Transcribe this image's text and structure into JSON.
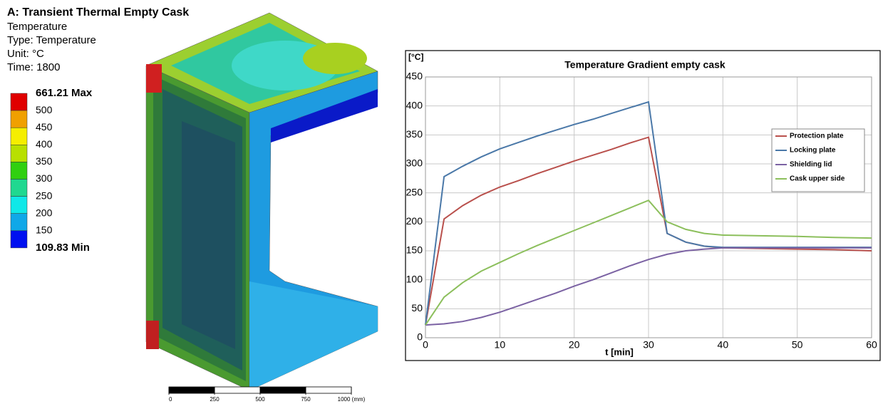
{
  "simulation": {
    "title": "A: Transient Thermal Empty Cask",
    "lines": [
      "Temperature",
      "Type: Temperature",
      "Unit: °C",
      "Time: 1800"
    ],
    "legend": {
      "levels": [
        {
          "value": 661.21,
          "label": "661.21 Max"
        },
        500,
        450,
        400,
        350,
        300,
        250,
        200,
        150,
        {
          "value": 109.83,
          "label": "109.83 Min"
        }
      ],
      "colors": [
        "#e00000",
        "#f0a000",
        "#f5ee00",
        "#b8e000",
        "#30d010",
        "#20d890",
        "#10e8e8",
        "#10a8e8",
        "#0010f0"
      ]
    },
    "scale_bar": {
      "ticks": [
        0,
        250,
        500,
        750,
        {
          "value": 1000,
          "label": "1000 (mm)"
        }
      ]
    }
  },
  "chart_data": {
    "type": "line",
    "title": "Temperature Gradient empty cask",
    "y_label": "[°C]",
    "x_label": "t [min]",
    "x": [
      0,
      2.5,
      5,
      7.5,
      10,
      12.5,
      15,
      17.5,
      20,
      22.5,
      25,
      27.5,
      30,
      32.5,
      35,
      37.5,
      40,
      45,
      50,
      55,
      60
    ],
    "series": [
      {
        "name": "Protection plate",
        "color": "#b9504c",
        "values": [
          22,
          205,
          228,
          246,
          260,
          271,
          283,
          294,
          305,
          315,
          325,
          336,
          346,
          180,
          165,
          158,
          155,
          154,
          153,
          152,
          150
        ]
      },
      {
        "name": "Locking plate",
        "color": "#4a78a8",
        "values": [
          22,
          278,
          296,
          312,
          326,
          337,
          348,
          358,
          368,
          377,
          387,
          397,
          407,
          180,
          165,
          158,
          156,
          156,
          156,
          156,
          156
        ]
      },
      {
        "name": "Shielding lid",
        "color": "#7b62a3",
        "values": [
          22,
          24,
          28,
          35,
          44,
          55,
          66,
          77,
          89,
          100,
          112,
          124,
          135,
          144,
          150,
          153,
          155,
          155,
          155,
          155,
          155
        ]
      },
      {
        "name": "Cask upper side",
        "color": "#8cbf5c",
        "values": [
          22,
          70,
          95,
          115,
          130,
          145,
          159,
          172,
          185,
          198,
          211,
          224,
          237,
          200,
          187,
          180,
          177,
          176,
          175,
          173,
          172
        ]
      }
    ],
    "xlim": [
      0,
      60
    ],
    "xticks": [
      0,
      10,
      20,
      30,
      40,
      50,
      60
    ],
    "ylim": [
      0,
      450
    ],
    "yticks": [
      0,
      50,
      100,
      150,
      200,
      250,
      300,
      350,
      400,
      450
    ],
    "grid": true,
    "legend_position": "upper right"
  }
}
